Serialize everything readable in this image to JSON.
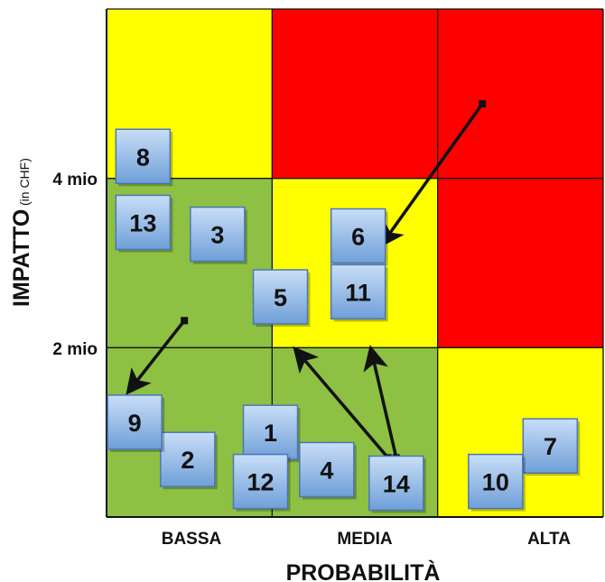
{
  "chart_data": {
    "type": "risk-matrix",
    "xlabel": "PROBABILITÀ",
    "ylabel": "IMPATTO",
    "ylabel_suffix": "(in CHF)",
    "x_categories": [
      "BASSA",
      "MEDIA",
      "ALTA"
    ],
    "y_tick_labels": [
      "2 mio",
      "4 mio"
    ],
    "grid": true,
    "cell_colors": [
      [
        "green",
        "green",
        "yellow"
      ],
      [
        "green",
        "yellow",
        "red"
      ],
      [
        "yellow",
        "red",
        "red"
      ]
    ],
    "colors": {
      "green": "#8dc043",
      "yellow": "#ffff00",
      "red": "#ff0000",
      "box": "#8fb8e8",
      "box_edge": "#4a77b8"
    },
    "risks": [
      {
        "label": "1",
        "x": 0.99,
        "y": 0.5
      },
      {
        "label": "2",
        "x": 0.49,
        "y": 0.34
      },
      {
        "label": "3",
        "x": 0.67,
        "y": 1.67
      },
      {
        "label": "4",
        "x": 1.33,
        "y": 0.28
      },
      {
        "label": "5",
        "x": 1.05,
        "y": 1.3
      },
      {
        "label": "6",
        "x": 1.52,
        "y": 1.66
      },
      {
        "label": "7",
        "x": 2.68,
        "y": 0.42
      },
      {
        "label": "8",
        "x": 0.22,
        "y": 2.13
      },
      {
        "label": "9",
        "x": 0.17,
        "y": 0.56
      },
      {
        "label": "10",
        "x": 2.35,
        "y": 0.21
      },
      {
        "label": "11",
        "x": 1.52,
        "y": 1.33
      },
      {
        "label": "12",
        "x": 0.93,
        "y": 0.21
      },
      {
        "label": "13",
        "x": 0.22,
        "y": 1.74
      },
      {
        "label": "14",
        "x": 1.75,
        "y": 0.2
      }
    ],
    "arrows": [
      {
        "from": [
          2.27,
          2.44
        ],
        "to": [
          1.67,
          1.62
        ]
      },
      {
        "from": [
          0.47,
          1.16
        ],
        "to": [
          0.14,
          0.75
        ]
      },
      {
        "from": [
          1.7,
          0.35
        ],
        "to": [
          1.15,
          0.98
        ]
      },
      {
        "from": [
          1.75,
          0.35
        ],
        "to": [
          1.6,
          0.98
        ]
      }
    ]
  }
}
